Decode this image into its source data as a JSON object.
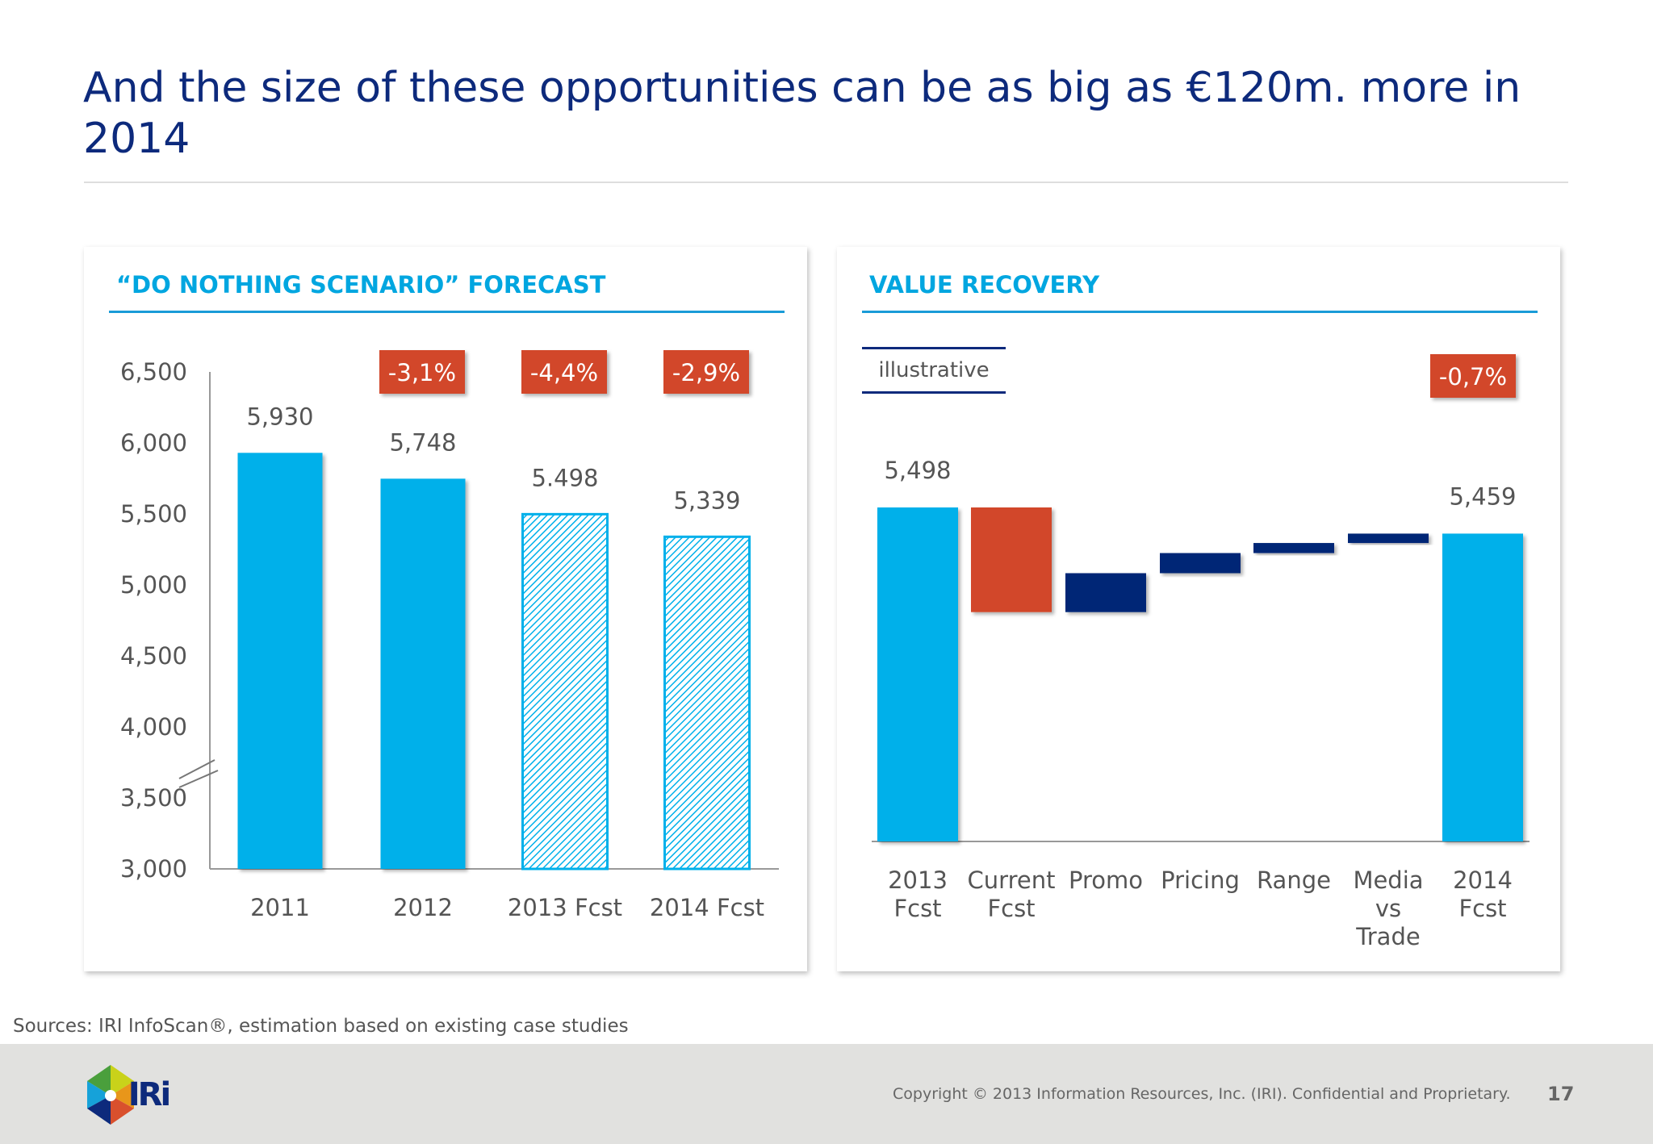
{
  "title": "And the size of these opportunities can be as big as €120m. more in 2014",
  "left_panel": {
    "heading": "“DO NOTHING SCENARIO” FORECAST"
  },
  "right_panel": {
    "heading": "VALUE RECOVERY",
    "tag": "illustrative"
  },
  "colors": {
    "title": "#0d2a7c",
    "accent": "#00a6e0",
    "bar": "#00b0ea",
    "navy": "#002776",
    "badge": "#d2472b"
  },
  "chart_data": [
    {
      "type": "bar",
      "title": "“DO NOTHING SCENARIO” FORECAST",
      "categories": [
        "2011",
        "2012",
        "2013 Fcst",
        "2014 Fcst"
      ],
      "values": [
        5930,
        5748,
        5498,
        5339
      ],
      "data_labels": [
        "5,930",
        "5,748",
        "5.498",
        "5,339"
      ],
      "hatched": [
        false,
        false,
        true,
        true
      ],
      "growth_badges": [
        "",
        "-3,1%",
        "-4,4%",
        "-2,9%"
      ],
      "ylim": [
        3000,
        6500
      ],
      "yticks": [
        3000,
        3500,
        4000,
        4500,
        5000,
        5500,
        6000,
        6500
      ],
      "ytick_labels": [
        "3,000",
        "3,500",
        "4,000",
        "4,500",
        "5,000",
        "5,500",
        "6,000",
        "6,500"
      ],
      "axis_break": true,
      "grid": false
    },
    {
      "type": "waterfall",
      "title": "VALUE RECOVERY",
      "categories": [
        [
          "2013",
          "Fcst"
        ],
        [
          "Current",
          "Fcst"
        ],
        [
          "Promo"
        ],
        [
          "Pricing"
        ],
        [
          "Range"
        ],
        [
          "Media",
          "vs",
          "Trade"
        ],
        [
          "2014",
          "Fcst"
        ]
      ],
      "values": [
        5498,
        -156,
        58,
        30,
        15,
        14,
        5459
      ],
      "kinds": [
        "total",
        "decrease",
        "increase",
        "increase",
        "increase",
        "increase",
        "total"
      ],
      "data_labels": [
        "5,498",
        "",
        "",
        "",
        "",
        "",
        "5,459"
      ],
      "growth_badge": "-0,7%",
      "ylim": [
        5000,
        5500
      ],
      "grid": false
    }
  ],
  "footer": {
    "sources": "Sources: IRI InfoScan®, estimation based on existing case studies",
    "copyright": "Copyright © 2013 Information Resources, Inc. (IRI). Confidential and Proprietary.",
    "page_number": "17",
    "logo_text": "IRi"
  }
}
